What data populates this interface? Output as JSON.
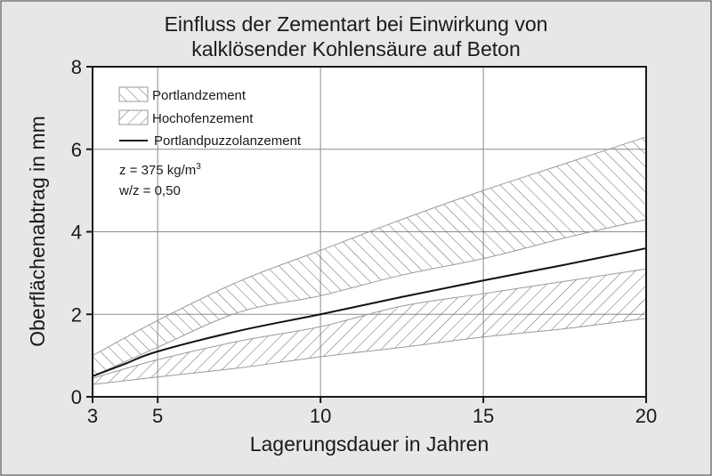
{
  "chart_data": {
    "type": "area",
    "title_lines": [
      "Einfluss der Zementart bei Einwirkung von",
      "kalklösender Kohlensäure auf Beton"
    ],
    "xlabel": "Lagerungsdauer in Jahren",
    "ylabel": "Oberflächenabtrag in mm",
    "xlim": [
      3,
      20
    ],
    "ylim": [
      0,
      8
    ],
    "xticks": [
      "3",
      "5",
      "10",
      "15",
      "20"
    ],
    "yticks": [
      "0",
      "2",
      "4",
      "6",
      "8"
    ],
    "x_tick_values": [
      3,
      5,
      10,
      15,
      20
    ],
    "y_tick_values": [
      0,
      2,
      4,
      6,
      8
    ],
    "grid": true,
    "legend_position": "top-left",
    "series": [
      {
        "name": "Portlandzement",
        "kind": "band",
        "pattern": "hatch-backslash",
        "x": [
          3,
          5,
          7.5,
          10,
          12.5,
          15,
          17.5,
          20
        ],
        "upper": [
          1.0,
          1.85,
          2.8,
          3.55,
          4.3,
          5.0,
          5.65,
          6.3
        ],
        "lower": [
          0.5,
          1.2,
          2.05,
          2.45,
          2.95,
          3.35,
          3.85,
          4.3
        ]
      },
      {
        "name": "Hochofenzement",
        "kind": "band",
        "pattern": "hatch-slash",
        "x": [
          3,
          5,
          7.5,
          10,
          12.5,
          15,
          17.5,
          20
        ],
        "upper": [
          0.45,
          0.9,
          1.35,
          1.7,
          2.2,
          2.5,
          2.8,
          3.1
        ],
        "lower": [
          0.3,
          0.48,
          0.7,
          0.97,
          1.2,
          1.45,
          1.65,
          1.9
        ]
      },
      {
        "name": "Portlandpuzzolanzement",
        "kind": "line",
        "x": [
          3,
          4,
          5,
          7.5,
          10,
          12.5,
          15,
          17.5,
          20
        ],
        "y": [
          0.5,
          0.8,
          1.1,
          1.6,
          2.0,
          2.42,
          2.82,
          3.2,
          3.6
        ]
      }
    ],
    "annotations": [
      "z = 375 kg/m",
      "3",
      "w/z = 0,50"
    ]
  },
  "colors": {
    "background": "#e7e7e7",
    "plot_background": "#ffffff",
    "axis": "#1a1a1a",
    "grid": "#8c8c8c",
    "hatch": "#555555",
    "band_edge": "#9a9a9a",
    "line": "#111111"
  }
}
